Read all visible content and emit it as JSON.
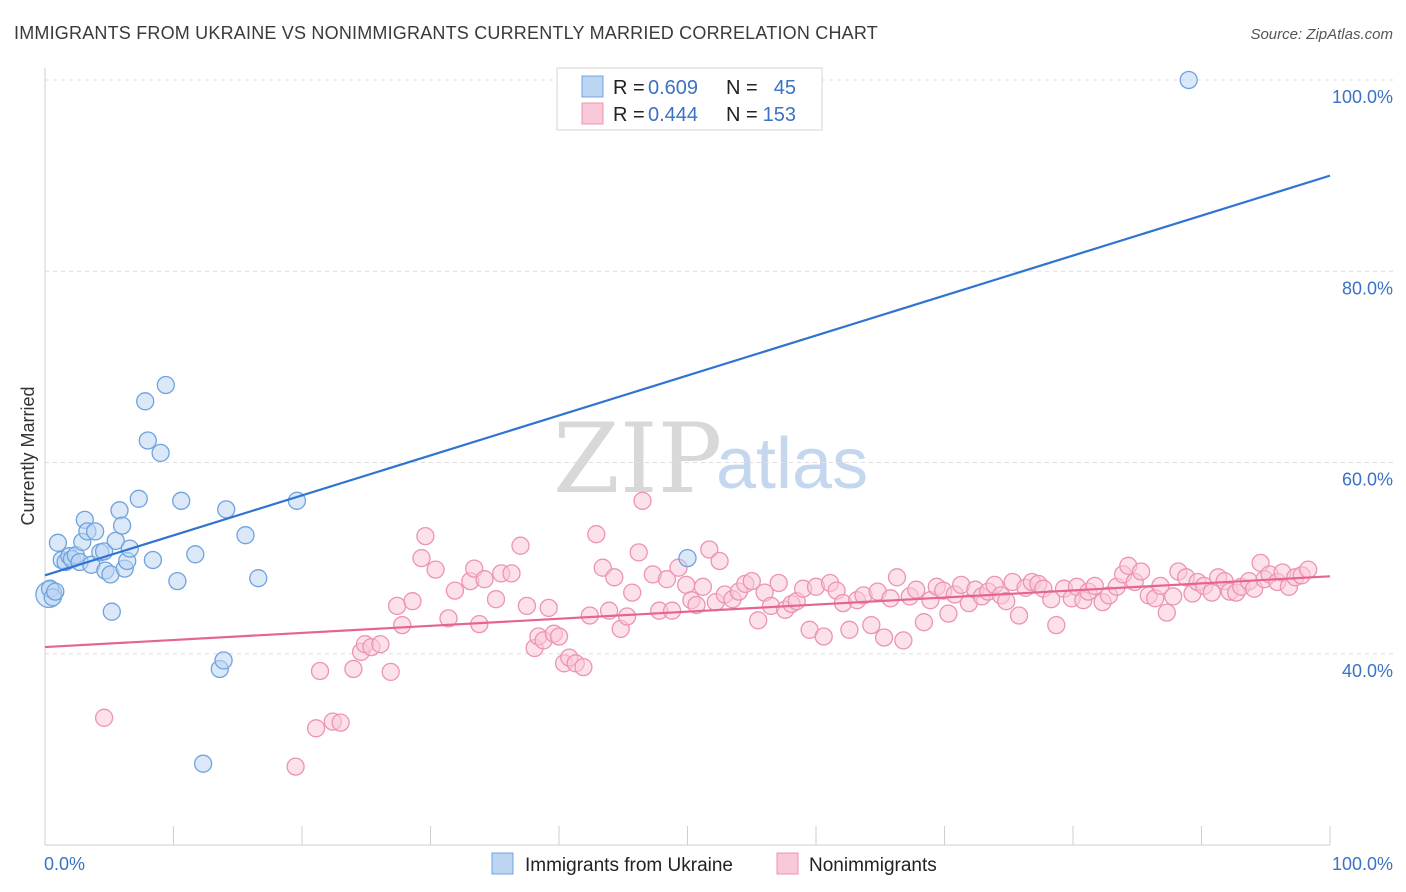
{
  "chart_data": {
    "type": "scatter",
    "title": "IMMIGRANTS FROM UKRAINE VS NONIMMIGRANTS CURRENTLY MARRIED CORRELATION CHART",
    "source": "Source: ZipAtlas.com",
    "xlabel": "",
    "ylabel": "Currently Married",
    "xlim": [
      0,
      100
    ],
    "ylim": [
      20,
      102
    ],
    "x_tick_labels": {
      "left": "0.0%",
      "right": "100.0%"
    },
    "y_ticks": [
      {
        "value": 100,
        "label": "100.0%"
      },
      {
        "value": 80,
        "label": "80.0%"
      },
      {
        "value": 60,
        "label": "60.0%"
      },
      {
        "value": 40,
        "label": "40.0%"
      }
    ],
    "watermark": {
      "part1": "ZIP",
      "part2": "atlas"
    },
    "legend": {
      "r_label": "R =",
      "n_label": "N =",
      "entries": [
        {
          "r": "0.609",
          "n": "45"
        },
        {
          "r": "0.444",
          "n": "153"
        }
      ]
    },
    "series": [
      {
        "name": "Immigrants from Ukraine",
        "color": "#6fa3e0",
        "fill": "#bcd5f3",
        "line_color": "#2f74d0",
        "trend": {
          "x0": 0,
          "y0": 48.2,
          "x1": 100,
          "y1": 90.0
        },
        "points": [
          [
            0.3,
            46.2
          ],
          [
            0.4,
            46.8
          ],
          [
            0.6,
            45.9
          ],
          [
            0.8,
            46.5
          ],
          [
            1.0,
            51.6
          ],
          [
            1.3,
            49.8
          ],
          [
            1.6,
            49.6
          ],
          [
            1.9,
            50.2
          ],
          [
            2.1,
            49.9
          ],
          [
            2.4,
            50.3
          ],
          [
            2.7,
            49.6
          ],
          [
            2.9,
            51.7
          ],
          [
            3.1,
            54.0
          ],
          [
            3.3,
            52.8
          ],
          [
            3.6,
            49.3
          ],
          [
            3.9,
            52.8
          ],
          [
            4.3,
            50.6
          ],
          [
            4.6,
            50.7
          ],
          [
            4.7,
            48.7
          ],
          [
            5.1,
            48.3
          ],
          [
            5.2,
            44.4
          ],
          [
            5.5,
            51.8
          ],
          [
            5.8,
            55.0
          ],
          [
            6.0,
            53.4
          ],
          [
            6.2,
            48.9
          ],
          [
            6.4,
            49.7
          ],
          [
            6.6,
            51.0
          ],
          [
            7.3,
            56.2
          ],
          [
            7.8,
            66.4
          ],
          [
            8.0,
            62.3
          ],
          [
            8.4,
            49.8
          ],
          [
            9.0,
            61.0
          ],
          [
            9.4,
            68.1
          ],
          [
            10.3,
            47.6
          ],
          [
            10.6,
            56.0
          ],
          [
            11.7,
            50.4
          ],
          [
            12.3,
            28.5
          ],
          [
            13.6,
            38.4
          ],
          [
            13.9,
            39.3
          ],
          [
            14.1,
            55.1
          ],
          [
            15.6,
            52.4
          ],
          [
            16.6,
            47.9
          ],
          [
            19.6,
            56.0
          ],
          [
            50.0,
            50.0
          ],
          [
            89.0,
            100.0
          ]
        ]
      },
      {
        "name": "Nonimmigrants",
        "color": "#ec94b1",
        "fill": "#f9c9d8",
        "line_color": "#e5658f",
        "trend": {
          "x0": 0,
          "y0": 40.7,
          "x1": 100,
          "y1": 48.1
        },
        "points": [
          [
            4.6,
            33.3
          ],
          [
            19.5,
            28.2
          ],
          [
            21.1,
            32.2
          ],
          [
            21.4,
            38.2
          ],
          [
            22.4,
            32.9
          ],
          [
            23.0,
            32.8
          ],
          [
            24.0,
            38.4
          ],
          [
            24.6,
            40.2
          ],
          [
            24.9,
            41.0
          ],
          [
            25.4,
            40.7
          ],
          [
            26.1,
            41.0
          ],
          [
            26.9,
            38.1
          ],
          [
            27.4,
            45.0
          ],
          [
            27.8,
            43.0
          ],
          [
            28.6,
            45.5
          ],
          [
            29.3,
            50.0
          ],
          [
            29.6,
            52.3
          ],
          [
            30.4,
            48.8
          ],
          [
            31.4,
            43.7
          ],
          [
            31.9,
            46.6
          ],
          [
            33.1,
            47.6
          ],
          [
            33.4,
            48.9
          ],
          [
            33.8,
            43.1
          ],
          [
            34.2,
            47.8
          ],
          [
            35.1,
            45.7
          ],
          [
            35.5,
            48.4
          ],
          [
            36.3,
            48.4
          ],
          [
            37.0,
            51.3
          ],
          [
            37.5,
            45.0
          ],
          [
            38.1,
            40.6
          ],
          [
            38.4,
            41.8
          ],
          [
            38.8,
            41.4
          ],
          [
            39.2,
            44.8
          ],
          [
            39.6,
            42.1
          ],
          [
            40.0,
            41.8
          ],
          [
            40.4,
            39.0
          ],
          [
            40.8,
            39.6
          ],
          [
            41.3,
            39.0
          ],
          [
            41.9,
            38.6
          ],
          [
            42.4,
            44.0
          ],
          [
            42.9,
            52.5
          ],
          [
            43.4,
            49.0
          ],
          [
            43.9,
            44.5
          ],
          [
            44.3,
            48.0
          ],
          [
            44.8,
            42.6
          ],
          [
            45.3,
            43.9
          ],
          [
            45.7,
            46.4
          ],
          [
            46.2,
            50.6
          ],
          [
            46.5,
            56.0
          ],
          [
            47.3,
            48.3
          ],
          [
            47.8,
            44.5
          ],
          [
            48.4,
            47.8
          ],
          [
            48.8,
            44.5
          ],
          [
            49.3,
            49.0
          ],
          [
            49.9,
            47.2
          ],
          [
            50.3,
            45.6
          ],
          [
            50.7,
            45.1
          ],
          [
            51.2,
            47.0
          ],
          [
            51.7,
            50.9
          ],
          [
            52.2,
            45.4
          ],
          [
            52.5,
            49.7
          ],
          [
            52.9,
            46.2
          ],
          [
            53.5,
            45.7
          ],
          [
            54.0,
            46.5
          ],
          [
            54.5,
            47.3
          ],
          [
            55.0,
            47.6
          ],
          [
            55.5,
            43.5
          ],
          [
            56.0,
            46.4
          ],
          [
            56.5,
            45.0
          ],
          [
            57.1,
            47.4
          ],
          [
            57.6,
            44.6
          ],
          [
            58.1,
            45.2
          ],
          [
            58.5,
            45.5
          ],
          [
            59.0,
            46.8
          ],
          [
            59.5,
            42.5
          ],
          [
            60.0,
            47.0
          ],
          [
            60.6,
            41.8
          ],
          [
            61.1,
            47.4
          ],
          [
            61.6,
            46.6
          ],
          [
            62.1,
            45.3
          ],
          [
            62.6,
            42.5
          ],
          [
            63.2,
            45.6
          ],
          [
            63.7,
            46.1
          ],
          [
            64.3,
            43.0
          ],
          [
            64.8,
            46.5
          ],
          [
            65.3,
            41.7
          ],
          [
            65.8,
            45.8
          ],
          [
            66.3,
            48.0
          ],
          [
            66.8,
            41.4
          ],
          [
            67.3,
            46.0
          ],
          [
            67.8,
            46.7
          ],
          [
            68.4,
            43.3
          ],
          [
            68.9,
            45.6
          ],
          [
            69.4,
            47.0
          ],
          [
            69.9,
            46.6
          ],
          [
            70.3,
            44.2
          ],
          [
            70.8,
            46.2
          ],
          [
            71.3,
            47.2
          ],
          [
            71.9,
            45.3
          ],
          [
            72.4,
            46.7
          ],
          [
            72.9,
            46.0
          ],
          [
            73.4,
            46.5
          ],
          [
            73.9,
            47.2
          ],
          [
            74.4,
            46.1
          ],
          [
            74.8,
            45.5
          ],
          [
            75.3,
            47.5
          ],
          [
            75.8,
            44.0
          ],
          [
            76.3,
            46.9
          ],
          [
            76.8,
            47.5
          ],
          [
            77.3,
            47.3
          ],
          [
            77.7,
            46.8
          ],
          [
            78.3,
            45.7
          ],
          [
            78.7,
            43.0
          ],
          [
            79.3,
            46.8
          ],
          [
            79.9,
            45.8
          ],
          [
            80.3,
            47.0
          ],
          [
            80.8,
            45.6
          ],
          [
            81.2,
            46.5
          ],
          [
            81.7,
            47.1
          ],
          [
            82.3,
            45.4
          ],
          [
            82.8,
            46.1
          ],
          [
            83.4,
            47.0
          ],
          [
            83.9,
            48.3
          ],
          [
            84.3,
            49.2
          ],
          [
            84.8,
            47.5
          ],
          [
            85.3,
            48.6
          ],
          [
            85.9,
            46.1
          ],
          [
            86.4,
            45.8
          ],
          [
            86.8,
            47.1
          ],
          [
            87.3,
            44.3
          ],
          [
            87.8,
            46.0
          ],
          [
            88.2,
            48.6
          ],
          [
            88.8,
            48.0
          ],
          [
            89.3,
            46.3
          ],
          [
            89.7,
            47.5
          ],
          [
            90.2,
            47.1
          ],
          [
            90.8,
            46.4
          ],
          [
            91.3,
            48.0
          ],
          [
            91.8,
            47.6
          ],
          [
            92.2,
            46.5
          ],
          [
            92.7,
            46.4
          ],
          [
            93.1,
            47.0
          ],
          [
            93.7,
            47.6
          ],
          [
            94.1,
            46.8
          ],
          [
            94.6,
            49.5
          ],
          [
            94.9,
            47.8
          ],
          [
            95.3,
            48.3
          ],
          [
            95.9,
            47.5
          ],
          [
            96.3,
            48.5
          ],
          [
            96.8,
            47.0
          ],
          [
            97.3,
            48.0
          ],
          [
            97.8,
            48.2
          ],
          [
            98.3,
            48.8
          ]
        ]
      }
    ]
  }
}
